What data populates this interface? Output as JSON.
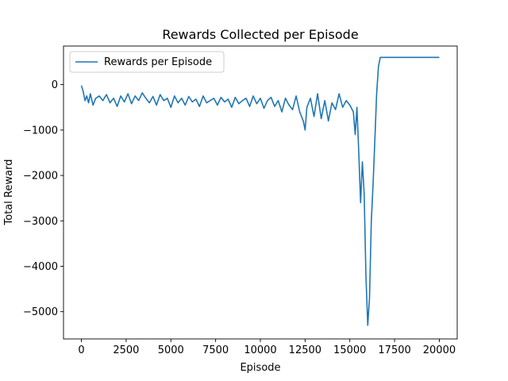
{
  "chart_data": {
    "type": "line",
    "title": "Rewards Collected per Episode",
    "xlabel": "Episode",
    "ylabel": "Total Reward",
    "xlim": [
      -1000,
      21000
    ],
    "ylim": [
      -5600,
      850
    ],
    "x_ticks": [
      0,
      2500,
      5000,
      7500,
      10000,
      12500,
      15000,
      17500,
      20000
    ],
    "x_tick_labels": [
      "0",
      "2500",
      "5000",
      "7500",
      "10000",
      "12500",
      "15000",
      "17500",
      "20000"
    ],
    "y_ticks": [
      0,
      -1000,
      -2000,
      -3000,
      -4000,
      -5000
    ],
    "y_tick_labels": [
      "0",
      "−1000",
      "−2000",
      "−3000",
      "−4000",
      "−5000"
    ],
    "grid": false,
    "legend_position": "upper-left",
    "series": [
      {
        "name": "Rewards per Episode",
        "color": "#1f77b4",
        "x": [
          0,
          100,
          200,
          300,
          400,
          500,
          650,
          800,
          1000,
          1200,
          1400,
          1600,
          1800,
          2000,
          2200,
          2400,
          2600,
          2800,
          3000,
          3200,
          3400,
          3600,
          3800,
          4000,
          4200,
          4400,
          4600,
          4800,
          5000,
          5200,
          5400,
          5600,
          5800,
          6000,
          6200,
          6400,
          6600,
          6800,
          7000,
          7200,
          7400,
          7600,
          7800,
          8000,
          8200,
          8400,
          8600,
          8800,
          9000,
          9200,
          9400,
          9600,
          9800,
          10000,
          10200,
          10400,
          10600,
          10800,
          11000,
          11200,
          11400,
          11600,
          11800,
          12000,
          12200,
          12400,
          12500,
          12600,
          12800,
          13000,
          13200,
          13400,
          13500,
          13600,
          13800,
          14000,
          14200,
          14400,
          14600,
          14800,
          15000,
          15200,
          15300,
          15400,
          15500,
          15600,
          15700,
          15800,
          15900,
          16000,
          16100,
          16200,
          16300,
          16400,
          16500,
          16600,
          16700,
          17000,
          18000,
          19000,
          20000
        ],
        "y": [
          -20,
          -150,
          -350,
          -250,
          -400,
          -200,
          -450,
          -300,
          -250,
          -350,
          -220,
          -400,
          -300,
          -480,
          -250,
          -380,
          -200,
          -420,
          -250,
          -350,
          -180,
          -300,
          -400,
          -260,
          -450,
          -220,
          -350,
          -300,
          -500,
          -250,
          -400,
          -300,
          -450,
          -260,
          -380,
          -320,
          -480,
          -250,
          -400,
          -350,
          -300,
          -450,
          -280,
          -380,
          -320,
          -500,
          -280,
          -420,
          -350,
          -300,
          -480,
          -250,
          -420,
          -300,
          -520,
          -350,
          -280,
          -480,
          -350,
          -600,
          -300,
          -450,
          -550,
          -250,
          -600,
          -800,
          -1000,
          -500,
          -300,
          -700,
          -200,
          -750,
          -550,
          -350,
          -800,
          -400,
          -550,
          -200,
          -500,
          -350,
          -450,
          -600,
          -1100,
          -500,
          -1500,
          -2600,
          -1700,
          -2400,
          -4200,
          -5300,
          -4700,
          -3000,
          -2200,
          -1200,
          -200,
          400,
          600,
          600,
          600,
          600,
          600
        ]
      }
    ]
  }
}
